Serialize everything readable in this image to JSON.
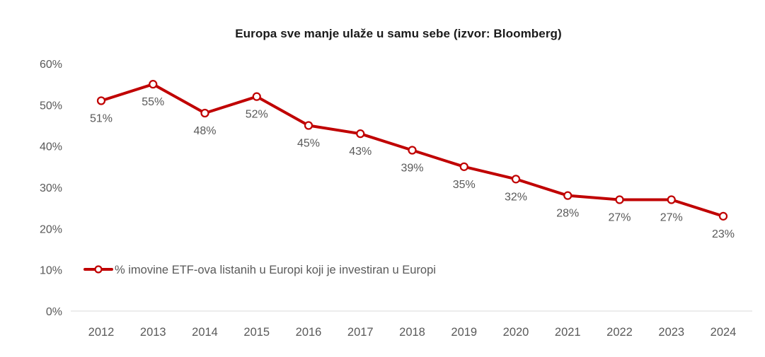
{
  "chart_data": {
    "type": "line",
    "title": "Europa sve manje ulaže u samu sebe (izvor: Bloomberg)",
    "categories": [
      "2012",
      "2013",
      "2014",
      "2015",
      "2016",
      "2017",
      "2018",
      "2019",
      "2020",
      "2021",
      "2022",
      "2023",
      "2024"
    ],
    "series": [
      {
        "name": "% imovine ETF-ova listanih u Europi koji je investiran u Europi",
        "values": [
          51,
          55,
          48,
          52,
          45,
          43,
          39,
          35,
          32,
          28,
          27,
          27,
          23
        ],
        "color": "#C00000",
        "marker": "open-circle"
      }
    ],
    "data_labels": [
      "51%",
      "55%",
      "48%",
      "52%",
      "45%",
      "43%",
      "39%",
      "35%",
      "32%",
      "28%",
      "27%",
      "27%",
      "23%"
    ],
    "xlabel": "",
    "ylabel": "",
    "ylim": [
      0,
      60
    ],
    "y_tick_step": 10,
    "y_tick_labels": [
      "0%",
      "10%",
      "20%",
      "30%",
      "40%",
      "50%",
      "60%"
    ],
    "grid": false,
    "legend_position": "inside-bottom-left",
    "colors": {
      "line": "#C00000",
      "marker_fill": "#ffffff",
      "axis_text": "#595959",
      "data_label_text": "#595959",
      "legend_text": "#595959",
      "axis_line": "#d9d9d9",
      "title_text": "#1a1a1a",
      "background": "#ffffff"
    }
  }
}
